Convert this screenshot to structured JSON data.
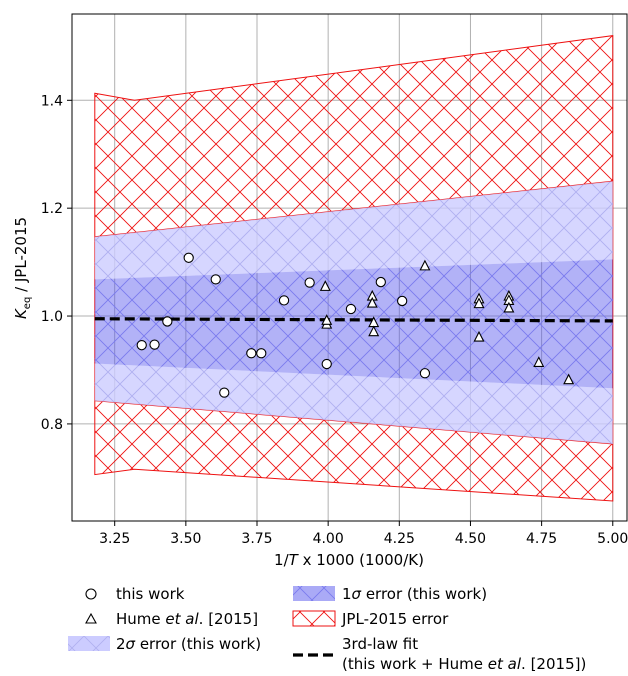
{
  "chart_data": {
    "type": "scatter",
    "xlabel_parts": [
      "1/",
      "T",
      " x 1000 (1000/K)"
    ],
    "ylabel_parts": [
      "K",
      "eq",
      " / JPL-2015"
    ],
    "xlim": [
      3.1,
      5.05
    ],
    "ylim": [
      0.62,
      1.56
    ],
    "x_ticks": [
      3.25,
      3.5,
      3.75,
      4.0,
      4.25,
      4.5,
      4.75,
      5.0
    ],
    "x_tick_labels": [
      "3.25",
      "3.50",
      "3.75",
      "4.00",
      "4.25",
      "4.50",
      "4.75",
      "5.00"
    ],
    "y_ticks": [
      0.8,
      1.0,
      1.2,
      1.4
    ],
    "y_tick_labels": [
      "0.8",
      "1.0",
      "1.2",
      "1.4"
    ],
    "grid": true,
    "legend_position": "below",
    "series": [
      {
        "name": "this work",
        "marker": "circle",
        "points": [
          [
            3.345,
            0.946
          ],
          [
            3.39,
            0.947
          ],
          [
            3.435,
            0.99
          ],
          [
            3.51,
            1.108
          ],
          [
            3.605,
            1.068
          ],
          [
            3.635,
            0.858
          ],
          [
            3.73,
            0.931
          ],
          [
            3.765,
            0.931
          ],
          [
            3.845,
            1.029
          ],
          [
            3.935,
            1.062
          ],
          [
            3.995,
            0.911
          ],
          [
            4.08,
            1.013
          ],
          [
            4.185,
            1.063
          ],
          [
            4.26,
            1.028
          ],
          [
            4.34,
            0.894
          ]
        ]
      },
      {
        "name_parts": [
          "Hume ",
          "et al",
          ". [2015]"
        ],
        "marker": "triangle",
        "points": [
          [
            3.99,
            1.055
          ],
          [
            3.995,
            0.985
          ],
          [
            3.995,
            0.992
          ],
          [
            4.155,
            1.037
          ],
          [
            4.155,
            1.024
          ],
          [
            4.16,
            0.988
          ],
          [
            4.16,
            0.971
          ],
          [
            4.34,
            1.093
          ],
          [
            4.53,
            1.032
          ],
          [
            4.53,
            1.023
          ],
          [
            4.53,
            0.961
          ],
          [
            4.635,
            1.037
          ],
          [
            4.635,
            1.029
          ],
          [
            4.635,
            1.015
          ],
          [
            4.74,
            0.914
          ],
          [
            4.845,
            0.882
          ]
        ]
      }
    ],
    "fit_line": {
      "x": [
        3.18,
        5.0
      ],
      "y": [
        0.995,
        0.991
      ],
      "color": "#000000"
    },
    "bands": {
      "one_sigma": {
        "color": "#5555ee",
        "upper": [
          [
            3.18,
            1.068
          ],
          [
            5.0,
            1.105
          ]
        ],
        "lower": [
          [
            3.18,
            0.912
          ],
          [
            5.0,
            0.866
          ]
        ]
      },
      "two_sigma": {
        "color": "#ccccff",
        "upper": [
          [
            3.18,
            1.147
          ],
          [
            5.0,
            1.25
          ]
        ],
        "lower": [
          [
            3.18,
            0.843
          ],
          [
            5.0,
            0.763
          ]
        ]
      },
      "jpl": {
        "color": "#ee1111",
        "upper": [
          [
            3.18,
            1.413
          ],
          [
            3.32,
            1.4
          ],
          [
            5.0,
            1.52
          ]
        ],
        "lower": [
          [
            3.18,
            0.706
          ],
          [
            3.32,
            0.716
          ],
          [
            5.0,
            0.657
          ]
        ]
      }
    },
    "legend": {
      "this_work": "this work",
      "hume_parts": [
        "Hume ",
        "et al",
        ". [2015]"
      ],
      "one_sigma_parts": [
        "1",
        "σ",
        " error (this work)"
      ],
      "jpl": "JPL-2015 error",
      "two_sigma_parts": [
        "2",
        "σ",
        " error (this work)"
      ],
      "fit_line1": "3rd-law fit",
      "fit_line2_parts": [
        "(this work + Hume ",
        "et al",
        ". [2015])"
      ]
    }
  }
}
